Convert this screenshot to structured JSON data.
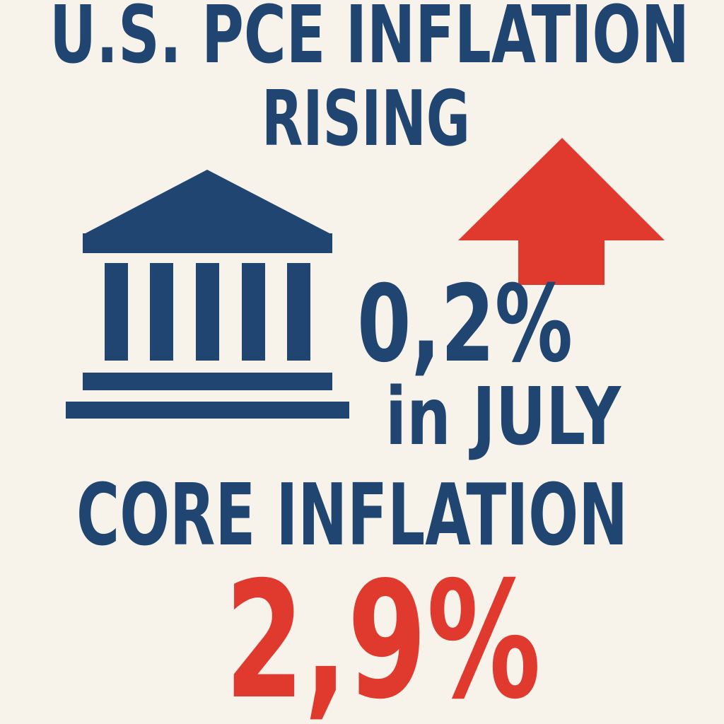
{
  "title": {
    "line1": "U.S. PCE INFLATION",
    "line2": "RISING"
  },
  "headline": {
    "figure": "0,2%",
    "period": "in JULY"
  },
  "core": {
    "label": "CORE INFLATION",
    "figure": "2,9%"
  }
}
